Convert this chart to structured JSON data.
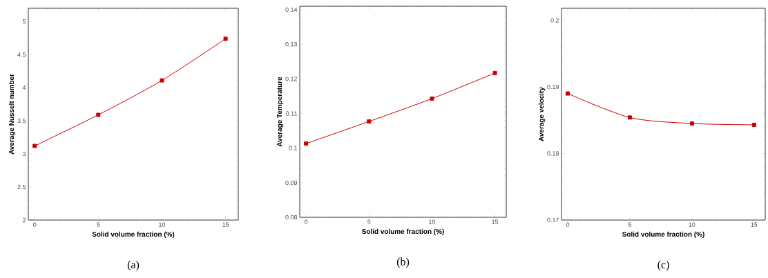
{
  "chart_data": [
    {
      "type": "line",
      "xlabel": "Solid volume fraction (%)",
      "ylabel": "Average Nusselt number",
      "x": [
        0,
        5,
        10,
        15
      ],
      "values": [
        3.12,
        3.59,
        4.11,
        4.74
      ],
      "color": "#cc0000",
      "marker": "square",
      "line_style": "solid",
      "xlim": [
        -0.5,
        16
      ],
      "ylim": [
        2,
        5.2
      ],
      "xticks": [
        0,
        5,
        10,
        15
      ],
      "yticks": [
        2,
        2.5,
        3,
        3.5,
        4,
        4.5,
        5
      ],
      "annotations": [
        "(a)"
      ]
    },
    {
      "type": "line",
      "xlabel": "Solid volume fraction (%)",
      "ylabel": "Average Temperature",
      "x": [
        0,
        5,
        10,
        15
      ],
      "values": [
        0.1013,
        0.1077,
        0.1143,
        0.1217
      ],
      "color": "#cc0000",
      "marker": "square",
      "line_style": "solid",
      "xlim": [
        -0.5,
        15.9
      ],
      "ylim": [
        0.08,
        0.141
      ],
      "xticks": [
        0,
        5,
        10,
        15
      ],
      "yticks": [
        0.08,
        0.09,
        0.1,
        0.11,
        0.12,
        0.13,
        0.14
      ],
      "annotations": [
        "(b)"
      ]
    },
    {
      "type": "line",
      "xlabel": "Solid volume fraction (%)",
      "ylabel": "Average velocity",
      "x": [
        0,
        5,
        10,
        15
      ],
      "values": [
        0.189,
        0.1854,
        0.1845,
        0.1843
      ],
      "color": "#cc0000",
      "marker": "square",
      "line_style": "solid",
      "xlim": [
        -0.5,
        15.9
      ],
      "ylim": [
        0.17,
        0.2018
      ],
      "xticks": [
        0,
        5,
        10,
        15
      ],
      "yticks": [
        0.17,
        0.18,
        0.19,
        0.2
      ],
      "annotations": [
        "(c)"
      ]
    }
  ]
}
